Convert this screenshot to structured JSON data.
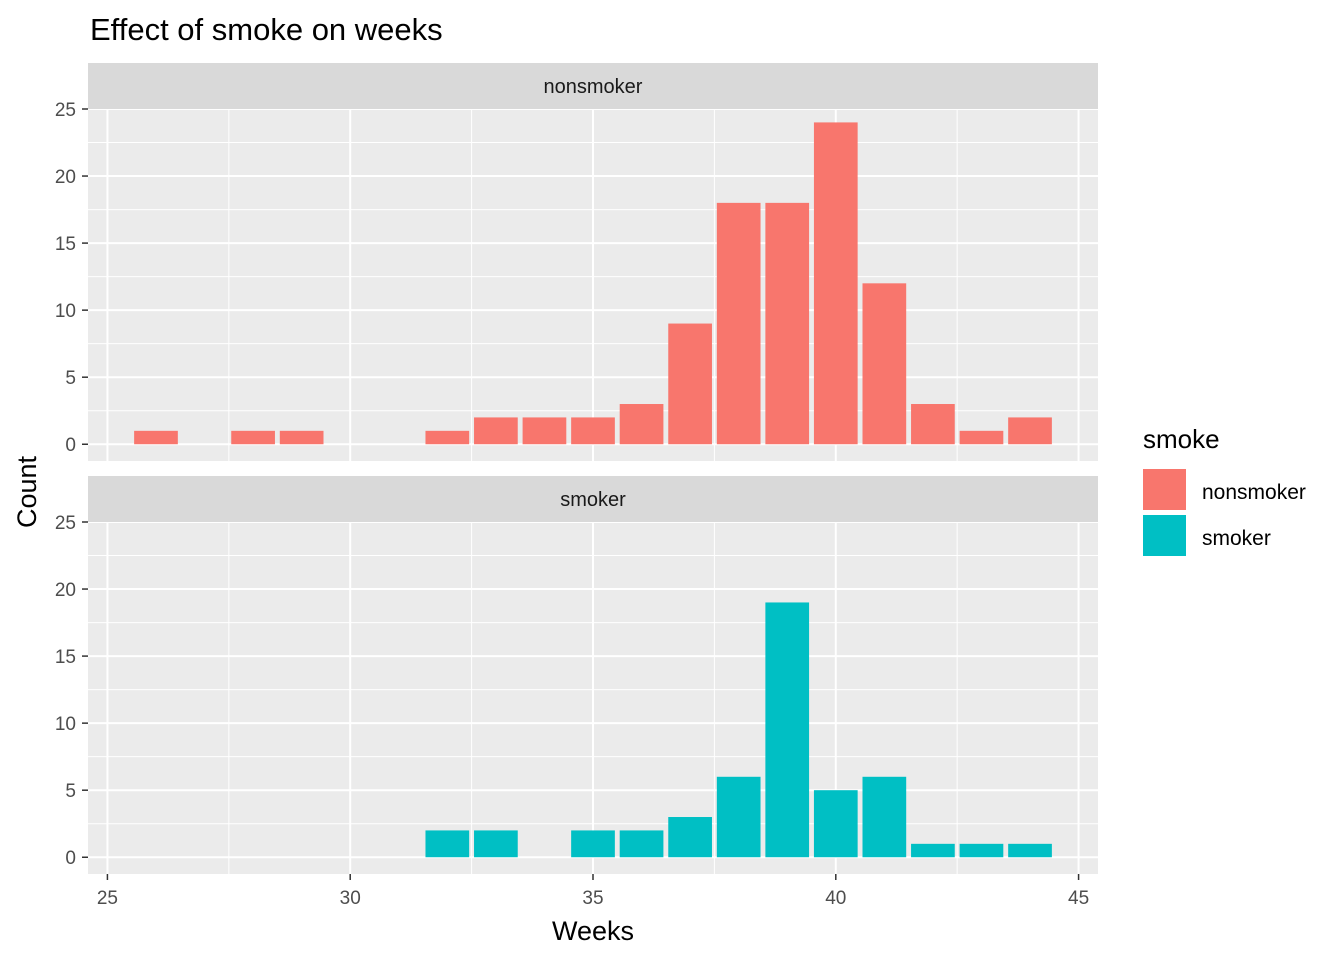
{
  "chart_data": {
    "type": "bar",
    "title": "Effect of smoke on weeks",
    "xlabel": "Weeks",
    "ylabel": "Count",
    "xlim": [
      24.6,
      45.4
    ],
    "ylim": [
      -1.25,
      25
    ],
    "x_ticks": [
      25,
      30,
      35,
      40,
      45
    ],
    "y_ticks": [
      0,
      5,
      10,
      15,
      20,
      25
    ],
    "grid": true,
    "legend": {
      "title": "smoke",
      "position": "right",
      "entries": [
        {
          "label": "nonsmoker",
          "color": "#F8766D"
        },
        {
          "label": "smoker",
          "color": "#00BFC4"
        }
      ]
    },
    "facets": [
      {
        "label": "nonsmoker",
        "color": "#F8766D",
        "x": [
          26,
          28,
          29,
          32,
          33,
          34,
          35,
          36,
          37,
          38,
          39,
          40,
          41,
          42,
          43,
          44
        ],
        "values": [
          1,
          1,
          1,
          1,
          2,
          2,
          2,
          3,
          9,
          18,
          18,
          24,
          12,
          3,
          1,
          2
        ]
      },
      {
        "label": "smoker",
        "color": "#00BFC4",
        "x": [
          32,
          33,
          35,
          36,
          37,
          38,
          39,
          40,
          41,
          42,
          43,
          44
        ],
        "values": [
          2,
          2,
          2,
          2,
          3,
          6,
          19,
          5,
          6,
          1,
          1,
          1
        ]
      }
    ]
  }
}
